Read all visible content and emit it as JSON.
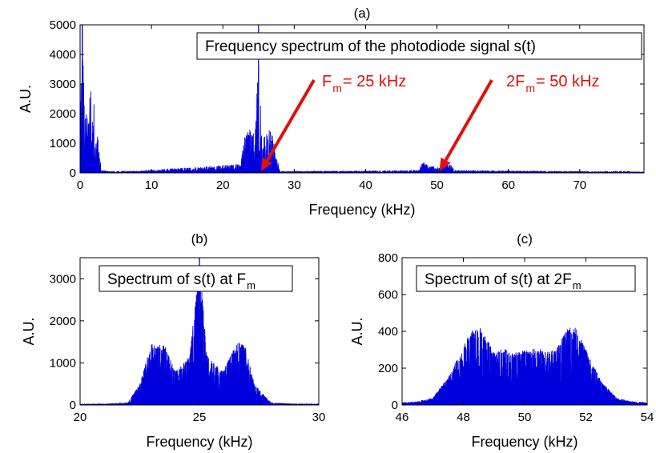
{
  "colors": {
    "spectrum": "#0000dd",
    "arrow": "#e01010",
    "axis": "#000000"
  },
  "chart_data": [
    {
      "id": "a",
      "type": "line",
      "title": "(a)",
      "xlabel": "Frequency (kHz)",
      "ylabel": "A.U.",
      "xlim": [
        0,
        79
      ],
      "ylim": [
        0,
        5000
      ],
      "xticks": [
        0,
        10,
        20,
        30,
        40,
        50,
        60,
        70
      ],
      "yticks": [
        0,
        1000,
        2000,
        3000,
        4000,
        5000
      ],
      "grid": false,
      "legend_box": {
        "text": "Frequency spectrum of the photodiode signal s(t)",
        "sub": ""
      },
      "annotations": [
        {
          "main": "F",
          "sub": "m",
          "rest": " = 25 kHz",
          "points_to_khz": 25
        },
        {
          "main": "2F",
          "sub": "m",
          "rest": " = 50 kHz",
          "points_to_khz": 50
        }
      ],
      "series": [
        {
          "x": [
            0,
            0.3,
            0.6,
            1,
            1.5,
            2,
            2.5,
            3,
            5,
            22.5,
            23,
            23.5,
            24,
            24.5,
            25,
            25.5,
            26,
            26.5,
            27,
            28,
            47.5,
            48,
            48.5,
            49,
            49.5,
            50,
            50.5,
            51,
            51.5,
            52,
            52.5,
            79
          ],
          "y": [
            2400,
            5000,
            2200,
            2000,
            3000,
            2300,
            1200,
            100,
            30,
            300,
            1200,
            1400,
            1500,
            1300,
            4100,
            1200,
            1300,
            1500,
            1200,
            50,
            100,
            400,
            300,
            200,
            250,
            180,
            220,
            300,
            400,
            300,
            100,
            30
          ]
        }
      ]
    },
    {
      "id": "b",
      "type": "line",
      "title": "(b)",
      "xlabel": "Frequency (kHz)",
      "ylabel": "A.U.",
      "xlim": [
        20,
        30
      ],
      "ylim": [
        0,
        3500
      ],
      "xticks": [
        20,
        25,
        30
      ],
      "yticks": [
        0,
        1000,
        2000,
        3000
      ],
      "grid": false,
      "legend_box": {
        "text": "Spectrum of s(t) at F",
        "sub": "m"
      },
      "series": [
        {
          "x": [
            20,
            21,
            22,
            22.5,
            23,
            23.3,
            23.6,
            24,
            24.3,
            24.6,
            25,
            25.3,
            25.6,
            26,
            26.3,
            26.6,
            26.9,
            27.3,
            28,
            29,
            30
          ],
          "y": [
            20,
            30,
            60,
            500,
            1500,
            1450,
            1400,
            800,
            1000,
            1200,
            3500,
            1200,
            1000,
            800,
            1200,
            1500,
            1450,
            500,
            60,
            30,
            20
          ]
        }
      ]
    },
    {
      "id": "c",
      "type": "line",
      "title": "(c)",
      "xlabel": "Frequency (kHz)",
      "ylabel": "A.U.",
      "xlim": [
        46,
        54
      ],
      "ylim": [
        0,
        800
      ],
      "xticks": [
        46,
        48,
        50,
        52,
        54
      ],
      "yticks": [
        0,
        200,
        400,
        600,
        800
      ],
      "grid": false,
      "legend_box": {
        "text": "Spectrum of s(t) at 2F",
        "sub": "m"
      },
      "series": [
        {
          "x": [
            46,
            46.5,
            47,
            47.5,
            48,
            48.3,
            48.6,
            49,
            49.3,
            49.6,
            50,
            50.4,
            50.7,
            51,
            51.4,
            51.7,
            52,
            52.5,
            53,
            53.5,
            54
          ],
          "y": [
            15,
            20,
            40,
            150,
            320,
            420,
            420,
            290,
            310,
            280,
            300,
            310,
            290,
            300,
            420,
            420,
            300,
            130,
            40,
            20,
            15
          ]
        }
      ]
    }
  ]
}
